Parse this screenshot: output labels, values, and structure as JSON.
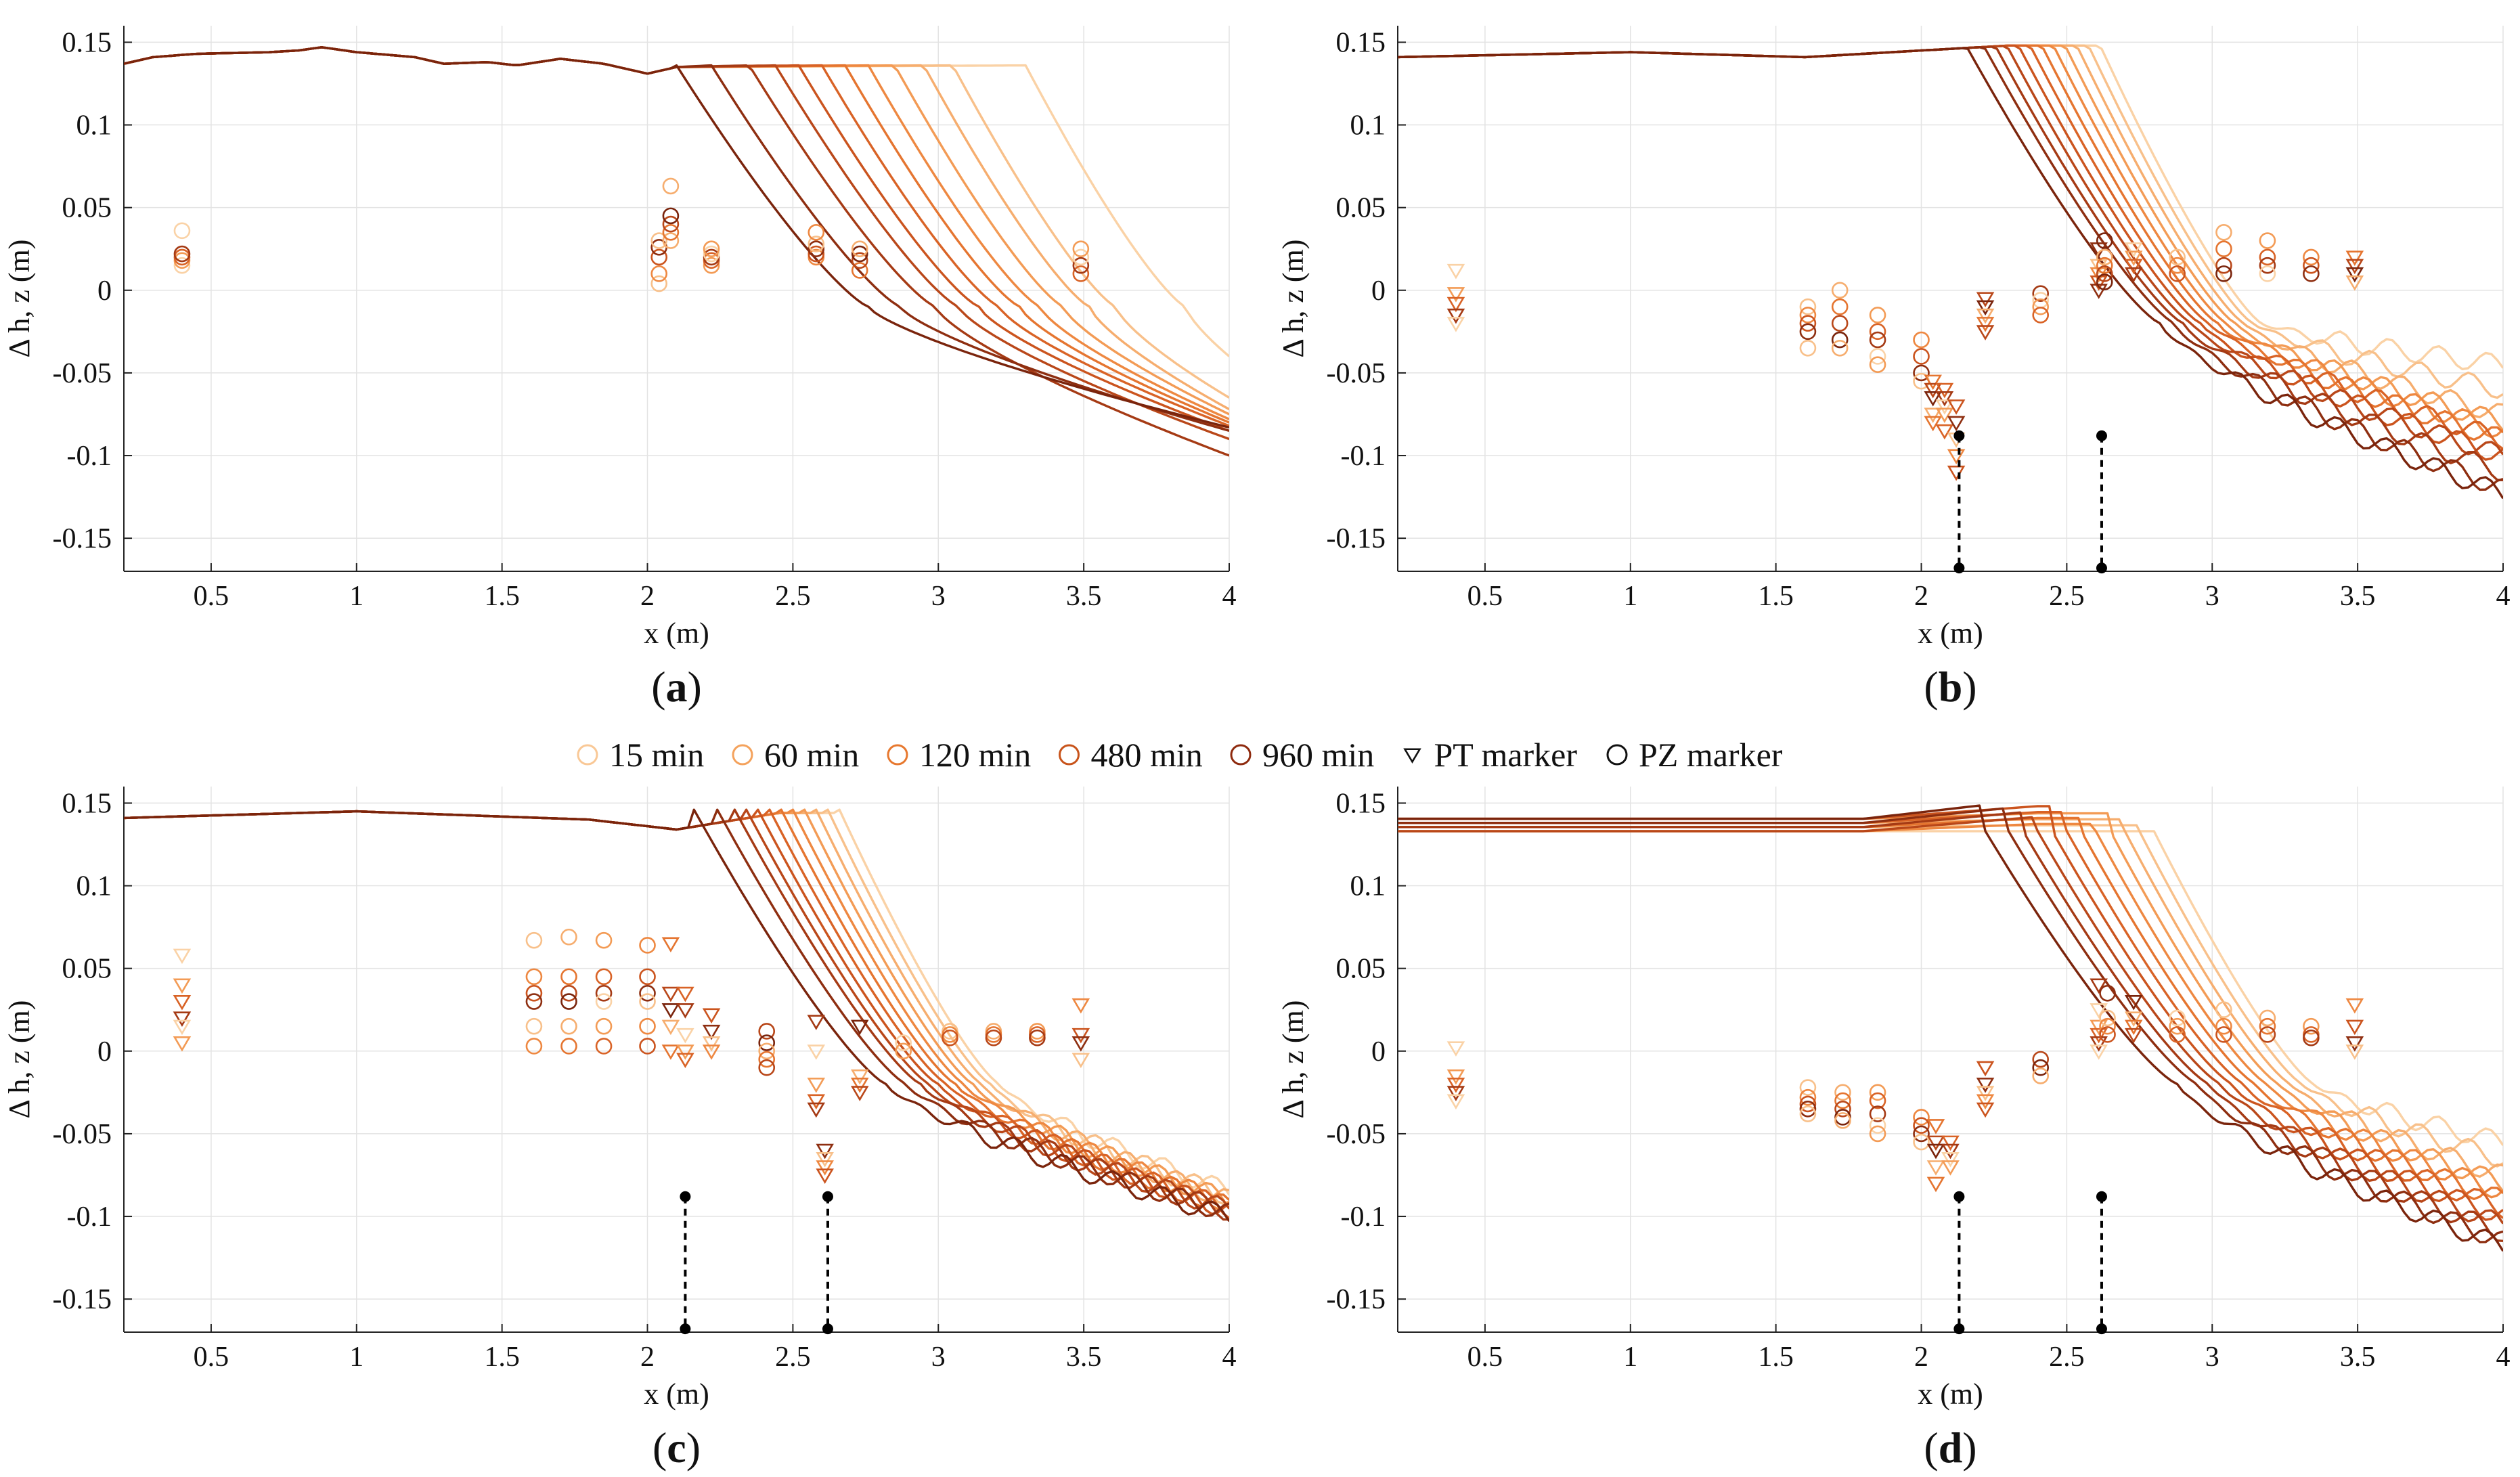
{
  "figure": {
    "legend": [
      {
        "label": "15 min",
        "color": "#F9C896",
        "marker": "circle"
      },
      {
        "label": "60 min",
        "color": "#F4A25C",
        "marker": "circle"
      },
      {
        "label": "120 min",
        "color": "#E7782E",
        "marker": "circle"
      },
      {
        "label": "480 min",
        "color": "#C8531A",
        "marker": "circle"
      },
      {
        "label": "960 min",
        "color": "#8E2A0E",
        "marker": "circle"
      },
      {
        "label": "PT marker",
        "color": "#111111",
        "marker": "triangle"
      },
      {
        "label": "PZ marker",
        "color": "#111111",
        "marker": "circle"
      }
    ],
    "profile_colors": [
      "#FAD2A6",
      "#F8C08A",
      "#F6AD6E",
      "#F39B55",
      "#EE8841",
      "#E57530",
      "#D96326",
      "#CB541E",
      "#B94719",
      "#A53A14",
      "#8E2E10",
      "#7A240C"
    ]
  },
  "chart_data": [
    {
      "type": "line",
      "panel": "(a)",
      "panel_letter": "a",
      "xlabel": "x (m)",
      "ylabel": "Δ h, z (m)",
      "xlim": [
        0.2,
        4.0
      ],
      "ylim": [
        -0.17,
        0.16
      ],
      "xticks": [
        0.5,
        1,
        1.5,
        2,
        2.5,
        3,
        3.5,
        4
      ],
      "xtick_labels": [
        "0.5",
        "1",
        "1.5",
        "2",
        "2.5",
        "3",
        "3.5",
        "4"
      ],
      "yticks": [
        0.15,
        0.1,
        0.05,
        0,
        -0.05,
        -0.1,
        -0.15
      ],
      "ytick_labels": [
        "0.15",
        "0.1",
        "0.05",
        "0",
        "-0.05",
        "-0.1",
        "-0.15"
      ],
      "grid": true,
      "profile_shape": "a",
      "profiles": [
        {
          "scarp_x": 3.3,
          "end_y": -0.04
        },
        {
          "scarp_x": 3.05,
          "end_y": -0.065
        },
        {
          "scarp_x": 2.95,
          "end_y": -0.072
        },
        {
          "scarp_x": 2.85,
          "end_y": -0.075
        },
        {
          "scarp_x": 2.76,
          "end_y": -0.078
        },
        {
          "scarp_x": 2.68,
          "end_y": -0.08
        },
        {
          "scarp_x": 2.6,
          "end_y": -0.082
        },
        {
          "scarp_x": 2.52,
          "end_y": -0.085
        },
        {
          "scarp_x": 2.44,
          "end_y": -0.09
        },
        {
          "scarp_x": 2.35,
          "end_y": -0.1
        },
        {
          "scarp_x": 2.22,
          "end_y": -0.085
        },
        {
          "scarp_x": 2.1,
          "end_y": -0.083
        }
      ],
      "markers": [
        {
          "x": 0.4,
          "values": [
            0.015,
            0.018,
            0.02,
            0.022,
            0.036
          ],
          "marker": "circle"
        },
        {
          "x": 2.04,
          "values": [
            0.004,
            0.01,
            0.02,
            0.026,
            0.03
          ],
          "marker": "circle"
        },
        {
          "x": 2.08,
          "values": [
            0.03,
            0.035,
            0.04,
            0.045,
            0.063
          ],
          "marker": "circle"
        },
        {
          "x": 2.22,
          "values": [
            0.015,
            0.018,
            0.02,
            0.022,
            0.025
          ],
          "marker": "circle"
        },
        {
          "x": 2.58,
          "values": [
            0.02,
            0.022,
            0.025,
            0.028,
            0.035
          ],
          "marker": "circle"
        },
        {
          "x": 2.73,
          "values": [
            0.012,
            0.018,
            0.022,
            0.025
          ],
          "marker": "circle"
        },
        {
          "x": 3.49,
          "values": [
            0.01,
            0.015,
            0.02,
            0.025
          ],
          "marker": "circle"
        }
      ],
      "dashed_lines": []
    },
    {
      "type": "line",
      "panel": "(b)",
      "panel_letter": "b",
      "xlabel": "x (m)",
      "ylabel": "Δ h, z (m)",
      "xlim": [
        0.2,
        4.0
      ],
      "ylim": [
        -0.17,
        0.16
      ],
      "xticks": [
        0.5,
        1,
        1.5,
        2,
        2.5,
        3,
        3.5,
        4
      ],
      "xtick_labels": [
        "0.5",
        "1",
        "1.5",
        "2",
        "2.5",
        "3",
        "3.5",
        "4"
      ],
      "yticks": [
        0.15,
        0.1,
        0.05,
        0,
        -0.05,
        -0.1,
        -0.15
      ],
      "ytick_labels": [
        "0.15",
        "0.1",
        "0.05",
        "0",
        "-0.05",
        "-0.1",
        "-0.15"
      ],
      "grid": true,
      "profile_shape": "b",
      "profiles": [
        {
          "scarp_x": 2.62,
          "end_y": -0.045
        },
        {
          "scarp_x": 2.58,
          "end_y": -0.06
        },
        {
          "scarp_x": 2.54,
          "end_y": -0.075
        },
        {
          "scarp_x": 2.5,
          "end_y": -0.08
        },
        {
          "scarp_x": 2.46,
          "end_y": -0.085
        },
        {
          "scarp_x": 2.42,
          "end_y": -0.09
        },
        {
          "scarp_x": 2.38,
          "end_y": -0.09
        },
        {
          "scarp_x": 2.34,
          "end_y": -0.1
        },
        {
          "scarp_x": 2.3,
          "end_y": -0.1
        },
        {
          "scarp_x": 2.26,
          "end_y": -0.11
        },
        {
          "scarp_x": 2.22,
          "end_y": -0.12
        },
        {
          "scarp_x": 2.16,
          "end_y": -0.123
        }
      ],
      "markers": [
        {
          "x": 0.4,
          "values": [
            0.012,
            -0.002,
            -0.008,
            -0.015,
            -0.02
          ],
          "marker": "triangle"
        },
        {
          "x": 1.61,
          "values": [
            -0.01,
            -0.015,
            -0.02,
            -0.025,
            -0.035
          ],
          "marker": "circle"
        },
        {
          "x": 1.72,
          "values": [
            0.0,
            -0.01,
            -0.02,
            -0.03,
            -0.035
          ],
          "marker": "circle"
        },
        {
          "x": 1.85,
          "values": [
            -0.015,
            -0.025,
            -0.03,
            -0.04,
            -0.045
          ],
          "marker": "circle"
        },
        {
          "x": 2.0,
          "values": [
            -0.03,
            -0.04,
            -0.05,
            -0.055
          ],
          "marker": "circle"
        },
        {
          "x": 2.04,
          "values": [
            -0.055,
            -0.06,
            -0.065,
            -0.075,
            -0.08
          ],
          "marker": "triangle"
        },
        {
          "x": 2.08,
          "values": [
            -0.06,
            -0.065,
            -0.07,
            -0.075,
            -0.085
          ],
          "marker": "triangle"
        },
        {
          "x": 2.12,
          "values": [
            -0.07,
            -0.08,
            -0.09,
            -0.1,
            -0.11
          ],
          "marker": "triangle"
        },
        {
          "x": 2.22,
          "values": [
            -0.005,
            -0.01,
            -0.015,
            -0.02,
            -0.025
          ],
          "marker": "triangle"
        },
        {
          "x": 2.41,
          "values": [
            -0.002,
            -0.006,
            -0.01,
            -0.015
          ],
          "marker": "circle"
        },
        {
          "x": 2.61,
          "values": [
            0.025,
            0.015,
            0.01,
            0.005,
            0.0
          ],
          "marker": "triangle"
        },
        {
          "x": 2.63,
          "values": [
            0.03,
            0.02,
            0.015,
            0.01,
            0.005
          ],
          "marker": "circle"
        },
        {
          "x": 2.73,
          "values": [
            0.025,
            0.02,
            0.015,
            0.01
          ],
          "marker": "triangle"
        },
        {
          "x": 2.88,
          "values": [
            0.02,
            0.015,
            0.01
          ],
          "marker": "circle"
        },
        {
          "x": 3.04,
          "values": [
            0.035,
            0.025,
            0.015,
            0.01
          ],
          "marker": "circle"
        },
        {
          "x": 3.19,
          "values": [
            0.03,
            0.02,
            0.015,
            0.01
          ],
          "marker": "circle"
        },
        {
          "x": 3.34,
          "values": [
            0.02,
            0.015,
            0.01
          ],
          "marker": "circle"
        },
        {
          "x": 3.49,
          "values": [
            0.02,
            0.015,
            0.01,
            0.005
          ],
          "marker": "triangle"
        }
      ],
      "dashed_lines": [
        {
          "x": 2.13,
          "y_top": -0.088,
          "y_bottom": -0.168
        },
        {
          "x": 2.62,
          "y_top": -0.088,
          "y_bottom": -0.168
        }
      ]
    },
    {
      "type": "line",
      "panel": "(c)",
      "panel_letter": "c",
      "xlabel": "x (m)",
      "ylabel": "Δ h, z (m)",
      "xlim": [
        0.2,
        4.0
      ],
      "ylim": [
        -0.17,
        0.16
      ],
      "xticks": [
        0.5,
        1,
        1.5,
        2,
        2.5,
        3,
        3.5,
        4
      ],
      "xtick_labels": [
        "0.5",
        "1",
        "1.5",
        "2",
        "2.5",
        "3",
        "3.5",
        "4"
      ],
      "yticks": [
        0.15,
        0.1,
        0.05,
        0,
        -0.05,
        -0.1,
        -0.15
      ],
      "ytick_labels": [
        "0.15",
        "0.1",
        "0.05",
        "0",
        "-0.05",
        "-0.1",
        "-0.15"
      ],
      "grid": true,
      "profile_shape": "c",
      "profiles": [
        {
          "scarp_x": 2.66,
          "end_y": -0.085
        },
        {
          "scarp_x": 2.62,
          "end_y": -0.088
        },
        {
          "scarp_x": 2.58,
          "end_y": -0.09
        },
        {
          "scarp_x": 2.54,
          "end_y": -0.09
        },
        {
          "scarp_x": 2.5,
          "end_y": -0.092
        },
        {
          "scarp_x": 2.46,
          "end_y": -0.094
        },
        {
          "scarp_x": 2.42,
          "end_y": -0.095
        },
        {
          "scarp_x": 2.38,
          "end_y": -0.096
        },
        {
          "scarp_x": 2.34,
          "end_y": -0.096
        },
        {
          "scarp_x": 2.3,
          "end_y": -0.097
        },
        {
          "scarp_x": 2.24,
          "end_y": -0.098
        },
        {
          "scarp_x": 2.16,
          "end_y": -0.1
        }
      ],
      "markers": [
        {
          "x": 0.4,
          "values": [
            0.058,
            0.04,
            0.03,
            0.02,
            0.015,
            0.005
          ],
          "marker": "triangle"
        },
        {
          "x": 1.61,
          "values": [
            0.067,
            0.045,
            0.035,
            0.03,
            0.015,
            0.003
          ],
          "marker": "circle"
        },
        {
          "x": 1.73,
          "values": [
            0.069,
            0.045,
            0.035,
            0.03,
            0.015,
            0.003
          ],
          "marker": "circle"
        },
        {
          "x": 1.85,
          "values": [
            0.067,
            0.045,
            0.035,
            0.03,
            0.015,
            0.003
          ],
          "marker": "circle"
        },
        {
          "x": 2.0,
          "values": [
            0.064,
            0.045,
            0.035,
            0.03,
            0.015,
            0.003
          ],
          "marker": "circle"
        },
        {
          "x": 2.08,
          "values": [
            0.065,
            0.035,
            0.025,
            0.015,
            0.0
          ],
          "marker": "triangle"
        },
        {
          "x": 2.13,
          "values": [
            0.035,
            0.025,
            0.01,
            0.0,
            -0.005
          ],
          "marker": "triangle"
        },
        {
          "x": 2.22,
          "values": [
            0.022,
            0.012,
            0.005,
            0.0
          ],
          "marker": "triangle"
        },
        {
          "x": 2.41,
          "values": [
            0.012,
            0.005,
            0.0,
            -0.005,
            -0.01
          ],
          "marker": "circle"
        },
        {
          "x": 2.58,
          "values": [
            0.018,
            0.0,
            -0.02,
            -0.03,
            -0.035
          ],
          "marker": "triangle"
        },
        {
          "x": 2.61,
          "values": [
            -0.06,
            -0.065,
            -0.07,
            -0.075
          ],
          "marker": "triangle"
        },
        {
          "x": 2.73,
          "values": [
            0.015,
            -0.015,
            -0.02,
            -0.025
          ],
          "marker": "triangle"
        },
        {
          "x": 2.88,
          "values": [
            0.005,
            0.0
          ],
          "marker": "circle"
        },
        {
          "x": 3.04,
          "values": [
            0.012,
            0.01,
            0.008
          ],
          "marker": "circle"
        },
        {
          "x": 3.19,
          "values": [
            0.012,
            0.01,
            0.008
          ],
          "marker": "circle"
        },
        {
          "x": 3.34,
          "values": [
            0.012,
            0.01,
            0.008
          ],
          "marker": "circle"
        },
        {
          "x": 3.49,
          "values": [
            0.028,
            0.01,
            0.005,
            -0.005
          ],
          "marker": "triangle"
        }
      ],
      "dashed_lines": [
        {
          "x": 2.13,
          "y_top": -0.088,
          "y_bottom": -0.168
        },
        {
          "x": 2.62,
          "y_top": -0.088,
          "y_bottom": -0.168
        }
      ]
    },
    {
      "type": "line",
      "panel": "(d)",
      "panel_letter": "d",
      "xlabel": "x (m)",
      "ylabel": "Δ h, z (m)",
      "xlim": [
        0.2,
        4.0
      ],
      "ylim": [
        -0.17,
        0.16
      ],
      "xticks": [
        0.5,
        1,
        1.5,
        2,
        2.5,
        3,
        3.5,
        4
      ],
      "xtick_labels": [
        "0.5",
        "1",
        "1.5",
        "2",
        "2.5",
        "3",
        "3.5",
        "4"
      ],
      "yticks": [
        0.15,
        0.1,
        0.05,
        0,
        -0.05,
        -0.1,
        -0.15
      ],
      "ytick_labels": [
        "0.15",
        "0.1",
        "0.05",
        "0",
        "-0.05",
        "-0.1",
        "-0.15"
      ],
      "grid": true,
      "profile_shape": "d",
      "profiles": [
        {
          "scarp_x": 2.8,
          "end_y": -0.055
        },
        {
          "scarp_x": 2.75,
          "end_y": -0.065
        },
        {
          "scarp_x": 2.7,
          "end_y": -0.075
        },
        {
          "scarp_x": 2.65,
          "end_y": -0.08
        },
        {
          "scarp_x": 2.6,
          "end_y": -0.085
        },
        {
          "scarp_x": 2.55,
          "end_y": -0.09
        },
        {
          "scarp_x": 2.5,
          "end_y": -0.095
        },
        {
          "scarp_x": 2.45,
          "end_y": -0.1
        },
        {
          "scarp_x": 2.4,
          "end_y": -0.105
        },
        {
          "scarp_x": 2.35,
          "end_y": -0.11
        },
        {
          "scarp_x": 2.3,
          "end_y": -0.115
        },
        {
          "scarp_x": 2.22,
          "end_y": -0.118
        }
      ],
      "markers": [
        {
          "x": 0.4,
          "values": [
            0.002,
            -0.015,
            -0.02,
            -0.025,
            -0.03
          ],
          "marker": "triangle"
        },
        {
          "x": 1.61,
          "values": [
            -0.022,
            -0.028,
            -0.032,
            -0.035,
            -0.038
          ],
          "marker": "circle"
        },
        {
          "x": 1.73,
          "values": [
            -0.025,
            -0.03,
            -0.035,
            -0.04,
            -0.042
          ],
          "marker": "circle"
        },
        {
          "x": 1.85,
          "values": [
            -0.025,
            -0.03,
            -0.038,
            -0.045,
            -0.05
          ],
          "marker": "circle"
        },
        {
          "x": 2.0,
          "values": [
            -0.04,
            -0.045,
            -0.05,
            -0.055
          ],
          "marker": "circle"
        },
        {
          "x": 2.05,
          "values": [
            -0.045,
            -0.055,
            -0.06,
            -0.07,
            -0.08
          ],
          "marker": "triangle"
        },
        {
          "x": 2.1,
          "values": [
            -0.055,
            -0.06,
            -0.065,
            -0.07
          ],
          "marker": "triangle"
        },
        {
          "x": 2.22,
          "values": [
            -0.01,
            -0.02,
            -0.025,
            -0.03,
            -0.035
          ],
          "marker": "triangle"
        },
        {
          "x": 2.41,
          "values": [
            -0.005,
            -0.01,
            -0.015
          ],
          "marker": "circle"
        },
        {
          "x": 2.61,
          "values": [
            0.04,
            0.025,
            0.015,
            0.01,
            0.005,
            0.0
          ],
          "marker": "triangle"
        },
        {
          "x": 2.64,
          "values": [
            0.035,
            0.02,
            0.015,
            0.01
          ],
          "marker": "circle"
        },
        {
          "x": 2.73,
          "values": [
            0.03,
            0.02,
            0.015,
            0.01
          ],
          "marker": "triangle"
        },
        {
          "x": 2.88,
          "values": [
            0.02,
            0.015,
            0.01
          ],
          "marker": "circle"
        },
        {
          "x": 3.04,
          "values": [
            0.025,
            0.015,
            0.01
          ],
          "marker": "circle"
        },
        {
          "x": 3.19,
          "values": [
            0.02,
            0.015,
            0.01
          ],
          "marker": "circle"
        },
        {
          "x": 3.34,
          "values": [
            0.015,
            0.01,
            0.008
          ],
          "marker": "circle"
        },
        {
          "x": 3.49,
          "values": [
            0.028,
            0.015,
            0.005,
            0.0
          ],
          "marker": "triangle"
        }
      ],
      "dashed_lines": [
        {
          "x": 2.13,
          "y_top": -0.088,
          "y_bottom": -0.168
        },
        {
          "x": 2.62,
          "y_top": -0.088,
          "y_bottom": -0.168
        }
      ]
    }
  ]
}
